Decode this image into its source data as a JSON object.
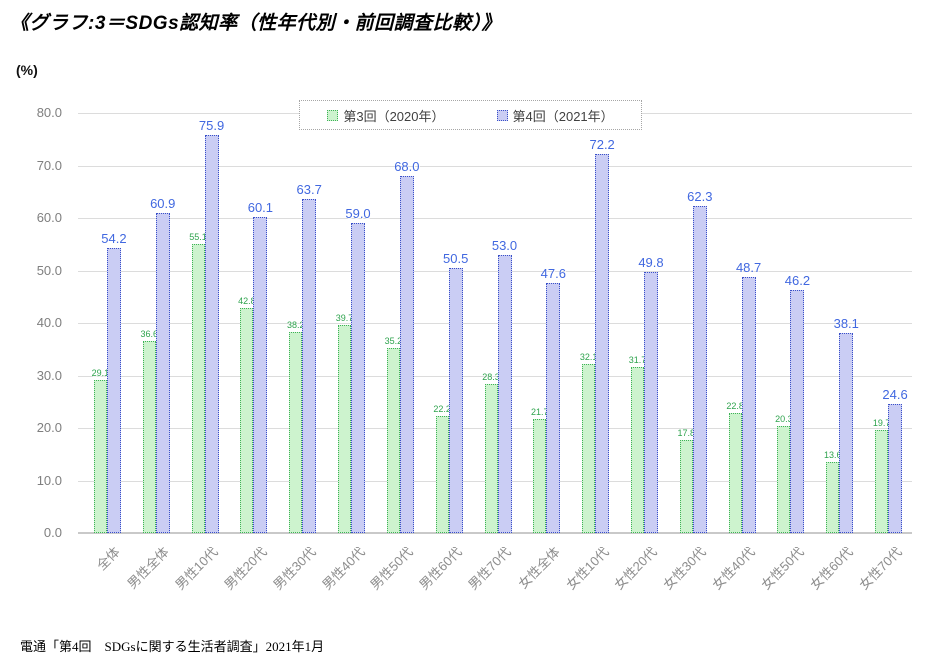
{
  "page": {
    "title": "《グラフ:3＝SDGs認知率（性年代別・前回調査比較）》",
    "unit_label": "(%)",
    "source_note": "電通「第4回　SDGsに関する生活者調査」2021年1月"
  },
  "legend": {
    "items": [
      {
        "label": "第3回（2020年）",
        "swatch_fill": "#cdf3ce",
        "swatch_border": "#3eb257"
      },
      {
        "label": "第4回（2021年）",
        "swatch_fill": "#cacdf4",
        "swatch_border": "#3950c8"
      }
    ]
  },
  "colors": {
    "gridline": "#dcdcdc",
    "axis_line": "#c9c9c9",
    "y_tick_text": "#7f7f7f",
    "category_text": "#8c8c8c",
    "series1_label": "#2ea34d",
    "series2_label": "#4168e0"
  },
  "chart_data": {
    "type": "bar",
    "title": "《グラフ:3＝SDGs認知率（性年代別・前回調査比較）》",
    "ylabel": "(%)",
    "ylim": [
      0,
      80
    ],
    "ytick_step": 10,
    "grid": true,
    "legend_position": "top-center",
    "value_labels": true,
    "categories": [
      "全体",
      "男性全体",
      "男性10代",
      "男性20代",
      "男性30代",
      "男性40代",
      "男性50代",
      "男性60代",
      "男性70代",
      "女性全体",
      "女性10代",
      "女性20代",
      "女性30代",
      "女性40代",
      "女性50代",
      "女性60代",
      "女性70代"
    ],
    "series": [
      {
        "name": "第3回（2020年）",
        "values": [
          29.1,
          36.6,
          55.1,
          42.8,
          38.2,
          39.7,
          35.2,
          22.2,
          28.3,
          21.7,
          32.1,
          31.7,
          17.8,
          22.8,
          20.3,
          13.6,
          19.7
        ],
        "fill": "#cdf3ce",
        "border": "#3eb257",
        "label_color": "#2ea34d"
      },
      {
        "name": "第4回（2021年）",
        "values": [
          54.2,
          60.9,
          75.9,
          60.1,
          63.7,
          59.0,
          68.0,
          50.5,
          53.0,
          47.6,
          72.2,
          49.8,
          62.3,
          48.7,
          46.2,
          38.1,
          24.6
        ],
        "fill": "#cacdf4",
        "border": "#3950c8",
        "label_color": "#4168e0"
      }
    ]
  }
}
